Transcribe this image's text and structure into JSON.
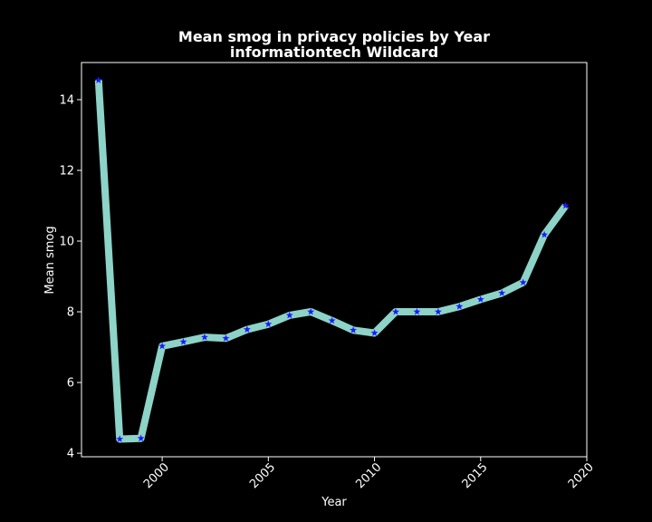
{
  "chart_data": {
    "type": "line",
    "title": "Mean smog in privacy policies by Year",
    "subtitle": "informationtech Wildcard",
    "xlabel": "Year",
    "ylabel": "Mean smog",
    "xlim": [
      1996.2,
      2020.0
    ],
    "ylim": [
      3.9,
      15.05
    ],
    "x_ticks": [
      2000,
      2005,
      2010,
      2015,
      2020
    ],
    "y_ticks": [
      4,
      6,
      8,
      10,
      12,
      14
    ],
    "grid": false,
    "legend": "none",
    "line_color": "#8dd3c7",
    "marker_color": "#1a1aff",
    "marker": "star",
    "background": "#000000",
    "x": [
      1997,
      1998,
      1999,
      2000,
      2001,
      2002,
      2003,
      2004,
      2005,
      2006,
      2007,
      2008,
      2009,
      2010,
      2011,
      2012,
      2013,
      2014,
      2015,
      2016,
      2017,
      2018,
      2019
    ],
    "values": [
      14.55,
      4.4,
      4.42,
      7.03,
      7.15,
      7.28,
      7.25,
      7.5,
      7.65,
      7.9,
      8.0,
      7.75,
      7.48,
      7.4,
      8.0,
      8.0,
      8.0,
      8.15,
      8.35,
      8.53,
      8.83,
      10.18,
      11.0
    ]
  }
}
